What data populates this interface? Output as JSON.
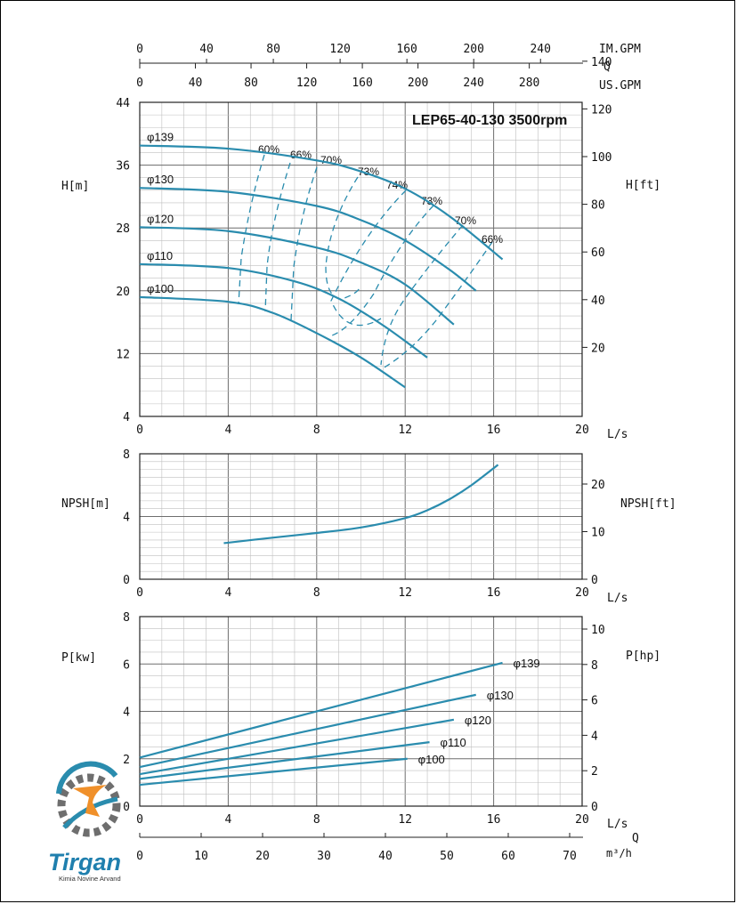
{
  "chart_data": [
    {
      "type": "line",
      "title": "LEP65-40-130 3500rpm",
      "xlabel": "L/s",
      "ylabel": "H[m]",
      "ylabel_right": "H[ft]",
      "xlim": [
        0,
        20
      ],
      "ylim": [
        4,
        44
      ],
      "x_ticks": [
        "0",
        "4",
        "8",
        "12",
        "16",
        "20"
      ],
      "y_ticks": [
        "4",
        "12",
        "20",
        "28",
        "36",
        "44"
      ],
      "y_right_ticks": [
        "20",
        "40",
        "60",
        "80",
        "100",
        "120",
        "140"
      ],
      "grid": true,
      "series": [
        {
          "name": "φ139",
          "x": [
            0,
            4,
            8,
            10,
            12,
            14,
            16.4
          ],
          "values": [
            38.5,
            38.1,
            36.6,
            35.2,
            33.0,
            29.5,
            24.0
          ]
        },
        {
          "name": "φ130",
          "x": [
            0,
            4,
            8,
            10,
            12,
            14,
            15.2
          ],
          "values": [
            33.1,
            32.6,
            30.8,
            29.0,
            26.4,
            22.7,
            20.0
          ]
        },
        {
          "name": "φ120",
          "x": [
            0,
            4,
            8,
            10,
            12,
            14.2
          ],
          "values": [
            28.1,
            27.6,
            25.5,
            23.6,
            20.8,
            15.7
          ]
        },
        {
          "name": "φ110",
          "x": [
            0,
            4,
            7,
            9,
            11,
            13
          ],
          "values": [
            23.4,
            22.9,
            21.2,
            19.0,
            15.6,
            11.5
          ]
        },
        {
          "name": "φ100",
          "x": [
            0,
            4,
            6,
            8,
            10,
            12
          ],
          "values": [
            19.2,
            18.6,
            17.2,
            14.6,
            11.5,
            7.7
          ]
        }
      ],
      "efficiency_labels": [
        "60%",
        "66%",
        "70%",
        "73%",
        "74%",
        "73%",
        "70%",
        "66%"
      ],
      "x2_axes": [
        {
          "label": "IM.GPM",
          "ticks": [
            "0",
            "40",
            "80",
            "120",
            "160",
            "200",
            "240"
          ]
        },
        {
          "label": "Q",
          "ticks": []
        },
        {
          "label": "US.GPM",
          "ticks": [
            "0",
            "40",
            "80",
            "120",
            "160",
            "200",
            "240",
            "280"
          ]
        }
      ]
    },
    {
      "type": "line",
      "xlabel": "L/s",
      "ylabel": "NPSH[m]",
      "ylabel_right": "NPSH[ft]",
      "xlim": [
        0,
        20
      ],
      "ylim": [
        0,
        8
      ],
      "x_ticks": [
        "0",
        "4",
        "8",
        "12",
        "16",
        "20"
      ],
      "y_ticks": [
        "0",
        "4",
        "8"
      ],
      "y_right_ticks": [
        "0",
        "10",
        "20"
      ],
      "grid": true,
      "series": [
        {
          "x": [
            3.8,
            6,
            8,
            10,
            12,
            13,
            14,
            15,
            16.2
          ],
          "values": [
            2.3,
            2.65,
            2.95,
            3.3,
            3.9,
            4.4,
            5.1,
            6.0,
            7.3
          ]
        }
      ]
    },
    {
      "type": "line",
      "xlabel": "L/s",
      "ylabel": "P[kw]",
      "ylabel_right": "P[hp]",
      "xlim": [
        0,
        20
      ],
      "ylim": [
        0,
        8
      ],
      "x_ticks": [
        "0",
        "4",
        "8",
        "12",
        "16",
        "20"
      ],
      "y_ticks": [
        "0",
        "2",
        "4",
        "6",
        "8"
      ],
      "y_right_ticks": [
        "0",
        "2",
        "4",
        "6",
        "8",
        "10"
      ],
      "grid": true,
      "series": [
        {
          "name": "φ139",
          "x": [
            0,
            16.4
          ],
          "values": [
            2.05,
            6.05
          ]
        },
        {
          "name": "φ130",
          "x": [
            0,
            15.2
          ],
          "values": [
            1.65,
            4.7
          ]
        },
        {
          "name": "φ120",
          "x": [
            0,
            14.2
          ],
          "values": [
            1.35,
            3.65
          ]
        },
        {
          "name": "φ110",
          "x": [
            0,
            13.1
          ],
          "values": [
            1.15,
            2.7
          ]
        },
        {
          "name": "φ100",
          "x": [
            0,
            12.1
          ],
          "values": [
            0.9,
            2.0
          ]
        }
      ],
      "x2_label": "Q",
      "x2_unit": "m³/h",
      "x2_ticks": [
        "0",
        "10",
        "20",
        "30",
        "40",
        "50",
        "60",
        "70"
      ]
    }
  ],
  "logo": {
    "name": "Tirgan",
    "subtitle": "Kimia Novine Arvand"
  },
  "colors": {
    "curve": "#2a8cae",
    "grid": "#bfbfbf",
    "grid_major": "#6e6e6e",
    "text": "#111111"
  }
}
